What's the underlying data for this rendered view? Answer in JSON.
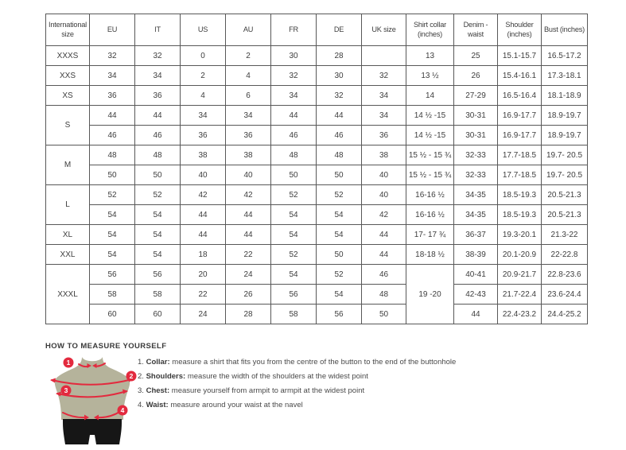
{
  "theme": {
    "accent_red": "#e32a3e",
    "torso_color": "#b5b39b",
    "shorts_color": "#161616",
    "border_color": "#3f3f3f",
    "text_color": "#3d3d3d",
    "background": "#ffffff"
  },
  "size_table": {
    "headers": [
      "International size",
      "EU",
      "IT",
      "US",
      "AU",
      "FR",
      "DE",
      "UK size",
      "Shirt collar (inches)",
      "Denim - waist",
      "Shoulder (inches)",
      "Bust (inches)"
    ],
    "groups": [
      {
        "label": "XXXS",
        "rows": [
          [
            "32",
            "32",
            "0",
            "2",
            "30",
            "28",
            "",
            "13",
            "25",
            "15.1-15.7",
            "16.5-17.2"
          ]
        ]
      },
      {
        "label": "XXS",
        "rows": [
          [
            "34",
            "34",
            "2",
            "4",
            "32",
            "30",
            "32",
            "13 ½",
            "26",
            "15.4-16.1",
            "17.3-18.1"
          ]
        ]
      },
      {
        "label": "XS",
        "rows": [
          [
            "36",
            "36",
            "4",
            "6",
            "34",
            "32",
            "34",
            "14",
            "27-29",
            "16.5-16.4",
            "18.1-18.9"
          ]
        ]
      },
      {
        "label": "S",
        "rows": [
          [
            "44",
            "44",
            "34",
            "34",
            "44",
            "44",
            "34",
            "14 ½ -15",
            "30-31",
            "16.9-17.7",
            "18.9-19.7"
          ],
          [
            "46",
            "46",
            "36",
            "36",
            "46",
            "46",
            "36",
            "14 ½ -15",
            "30-31",
            "16.9-17.7",
            "18.9-19.7"
          ]
        ]
      },
      {
        "label": "M",
        "rows": [
          [
            "48",
            "48",
            "38",
            "38",
            "48",
            "48",
            "38",
            "15 ½ - 15 ¾",
            "32-33",
            "17.7-18.5",
            "19.7- 20.5"
          ],
          [
            "50",
            "50",
            "40",
            "40",
            "50",
            "50",
            "40",
            "15 ½ - 15 ¾",
            "32-33",
            "17.7-18.5",
            "19.7- 20.5"
          ]
        ]
      },
      {
        "label": "L",
        "rows": [
          [
            "52",
            "52",
            "42",
            "42",
            "52",
            "52",
            "40",
            "16-16 ½",
            "34-35",
            "18.5-19.3",
            "20.5-21.3"
          ],
          [
            "54",
            "54",
            "44",
            "44",
            "54",
            "54",
            "42",
            "16-16 ½",
            "34-35",
            "18.5-19.3",
            "20.5-21.3"
          ]
        ]
      },
      {
        "label": "XL",
        "rows": [
          [
            "54",
            "54",
            "44",
            "44",
            "54",
            "54",
            "44",
            "17- 17 ¾",
            "36-37",
            "19.3-20.1",
            "21.3-22"
          ]
        ]
      },
      {
        "label": "XXL",
        "rows": [
          [
            "54",
            "54",
            "18",
            "22",
            "52",
            "50",
            "44",
            "18-18 ½",
            "38-39",
            "20.1-20.9",
            "22-22.8"
          ]
        ]
      },
      {
        "label": "XXXL",
        "collar_rowspan": 3,
        "rows": [
          [
            "56",
            "56",
            "20",
            "24",
            "54",
            "52",
            "46",
            "19 -20",
            "40-41",
            "20.9-21.7",
            "22.8-23.6"
          ],
          [
            "58",
            "58",
            "22",
            "26",
            "56",
            "54",
            "48",
            null,
            "42-43",
            "21.7-22.4",
            "23.6-24.4"
          ],
          [
            "60",
            "60",
            "24",
            "28",
            "58",
            "56",
            "50",
            null,
            "44",
            "22.4-23.2",
            "24.4-25.2"
          ]
        ]
      }
    ]
  },
  "measure": {
    "title": "HOW TO MEASURE YOURSELF",
    "items": [
      {
        "num": "1.",
        "label": "Collar:",
        "rest": " measure a shirt that fits you from the centre of the button to the end of the buttonhole"
      },
      {
        "num": "2.",
        "label": "Shoulders:",
        "rest": " measure the width of the shoulders at the widest point"
      },
      {
        "num": "3.",
        "label": "Chest:",
        "rest": " measure yourself from armpit to armpit at the widest point"
      },
      {
        "num": "4.",
        "label": "Waist:",
        "rest": " measure around your waist at the navel"
      }
    ],
    "figure_badges": [
      "1",
      "2",
      "3",
      "4"
    ]
  }
}
